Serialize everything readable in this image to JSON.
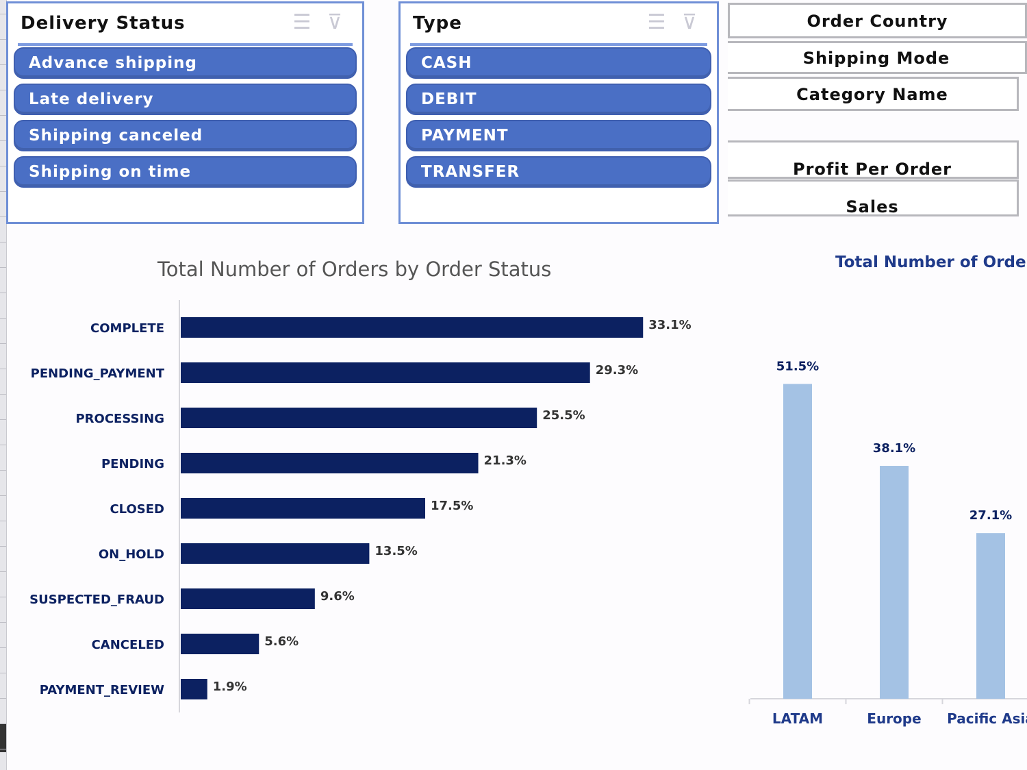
{
  "slicers": {
    "delivery_status": {
      "title": "Delivery Status",
      "items": [
        "Advance shipping",
        "Late delivery",
        "Shipping canceled",
        "Shipping on time"
      ]
    },
    "type": {
      "title": "Type",
      "items": [
        "CASH",
        "DEBIT",
        "PAYMENT",
        "TRANSFER"
      ]
    }
  },
  "fields": {
    "order_country": "Order Country",
    "shipping_mode": "Shipping Mode",
    "category_name": "Category Name",
    "profit_per_order": "Profit Per Order",
    "sales": "Sales"
  },
  "icons": {
    "multi_select": "multi-select-icon",
    "clear_filter": "clear-filter-icon"
  },
  "colors": {
    "slicer_fill": "#4a6fc5",
    "bar_dark": "#0c2161",
    "bar_light": "#a4c2e4"
  },
  "chart_data": [
    {
      "type": "bar",
      "orientation": "horizontal",
      "title": "Total Number of Orders by Order Status",
      "categories": [
        "COMPLETE",
        "PENDING_PAYMENT",
        "PROCESSING",
        "PENDING",
        "CLOSED",
        "ON_HOLD",
        "SUSPECTED_FRAUD",
        "CANCELED",
        "PAYMENT_REVIEW"
      ],
      "values": [
        33.1,
        29.3,
        25.5,
        21.3,
        17.5,
        13.5,
        9.6,
        5.6,
        1.9
      ],
      "labels": [
        "33.1%",
        "29.3%",
        "25.5%",
        "21.3%",
        "17.5%",
        "13.5%",
        "9.6%",
        "5.6%",
        "1.9%"
      ],
      "xlim": [
        0,
        50
      ]
    },
    {
      "type": "bar",
      "orientation": "vertical",
      "title": "Total Number of Orders",
      "categories": [
        "LATAM",
        "Europe",
        "Pacific Asia"
      ],
      "values": [
        51.5,
        38.1,
        27.1
      ],
      "labels": [
        "51.5%",
        "38.1%",
        "27.1%"
      ],
      "ylim": [
        0,
        65
      ]
    }
  ]
}
